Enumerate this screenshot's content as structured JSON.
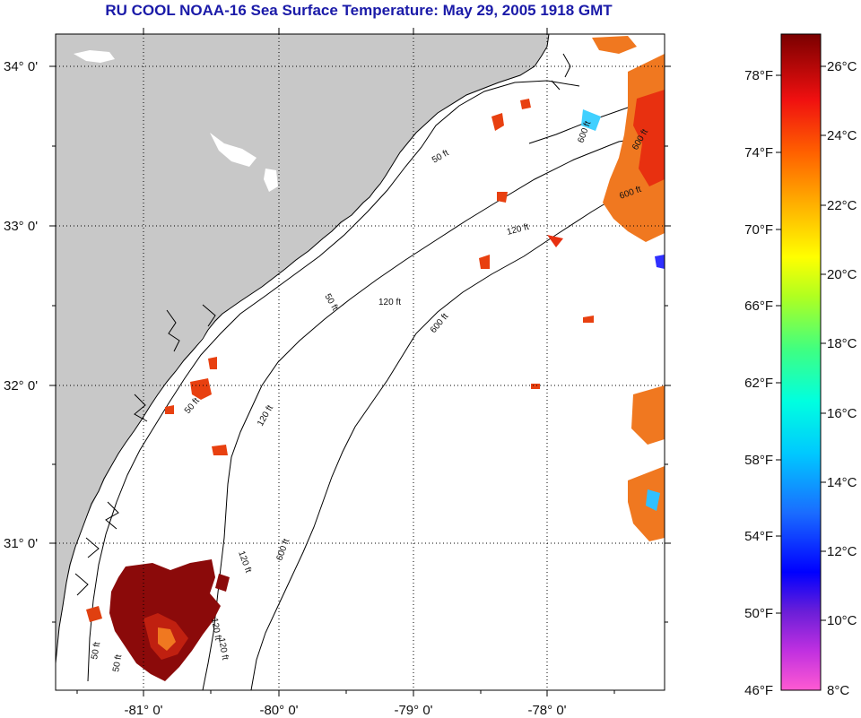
{
  "title": "RU COOL  NOAA-16  Sea Surface Temperature:  May 29, 2005 1918 GMT",
  "map": {
    "lat_labels": [
      "34° 0'",
      "33° 0'",
      "32° 0'",
      "31° 0'"
    ],
    "lon_labels": [
      "-81° 0'",
      "-80° 0'",
      "-79° 0'",
      "-78° 0'"
    ],
    "contour_labels": [
      "50 ft",
      "120 ft",
      "600 ft",
      "50 ft",
      "120 ft",
      "600 ft",
      "50 ft",
      "120 ft",
      "600 ft",
      "120 ft",
      "600 ft",
      "50 ft",
      "120 ft",
      "600 ft",
      "50 ft",
      "120 ft"
    ]
  },
  "colorbar": {
    "fahrenheit_labels": [
      "78°F",
      "74°F",
      "70°F",
      "66°F",
      "62°F",
      "58°F",
      "54°F",
      "50°F",
      "46°F"
    ],
    "celsius_labels": [
      "26°C",
      "24°C",
      "22°C",
      "20°C",
      "18°C",
      "16°C",
      "14°C",
      "12°C",
      "10°C",
      "8°C"
    ]
  },
  "colors": {
    "land": "#c8c8c8",
    "ocean": "#ffffff",
    "title": "#1a1aa8",
    "warm_water": "#8b0a0a",
    "gulf_stream": "#f07820"
  }
}
